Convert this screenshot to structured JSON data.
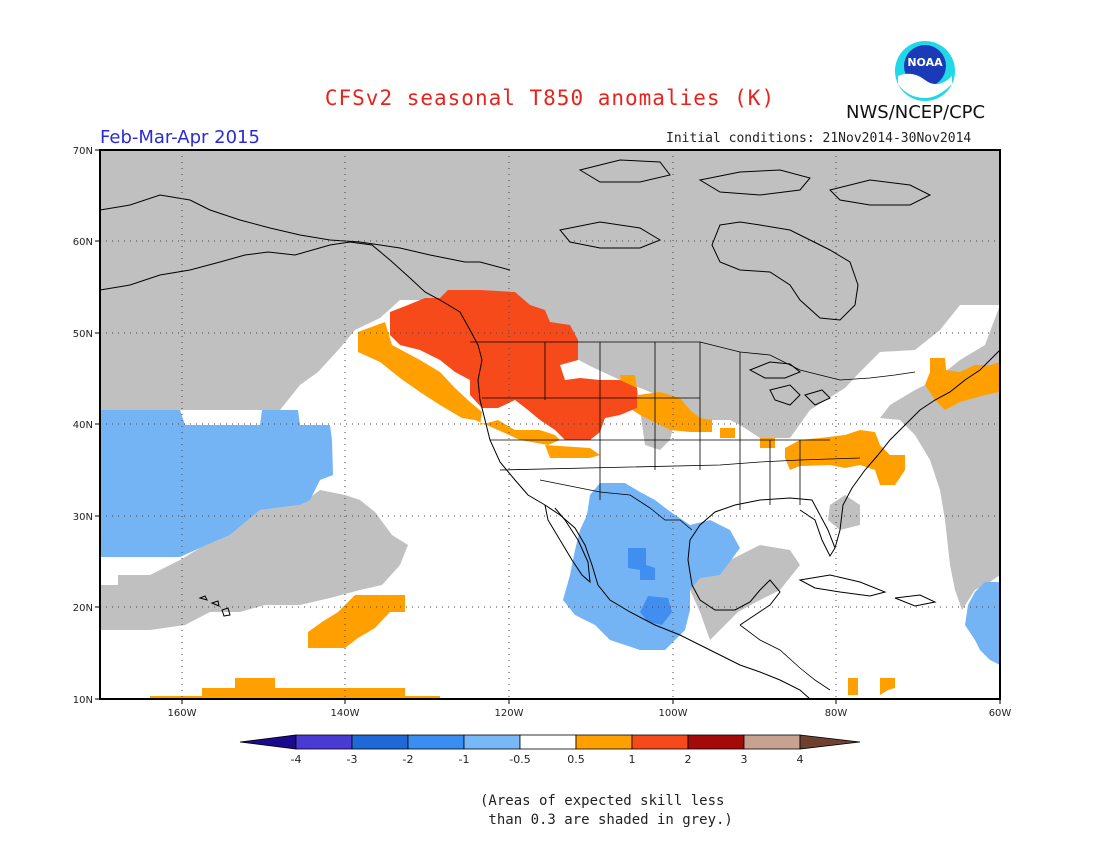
{
  "header": {
    "title": "CFSv2 seasonal T850 anomalies (K)",
    "agency": "NWS/NCEP/CPC",
    "logo_text": "NOAA",
    "period": "Feb-Mar-Apr 2015",
    "initial_conditions": "Initial conditions: 21Nov2014-30Nov2014"
  },
  "map": {
    "lat_labels": [
      "70N",
      "60N",
      "50N",
      "40N",
      "30N",
      "20N",
      "10N"
    ],
    "lon_labels": [
      "160W",
      "140W",
      "120W",
      "100W",
      "80W",
      "60W"
    ],
    "lat_range": [
      10,
      70
    ],
    "lon_range": [
      -170,
      -60
    ],
    "colors": {
      "grey": "#c0c0c0",
      "light_blue": "#74b4f4",
      "blue": "#3f8ef0",
      "orange": "#ffa000",
      "red_orange": "#f64a1a"
    }
  },
  "colorbar": {
    "tick_labels": [
      "-4",
      "-3",
      "-2",
      "-1",
      "-0.5",
      "0.5",
      "1",
      "2",
      "3",
      "4"
    ],
    "colors": [
      "#1c0a8c",
      "#4a3ad4",
      "#1e68d8",
      "#3a8ef2",
      "#78b8f6",
      "#ffffff",
      "#ffa000",
      "#f64a1a",
      "#a50a0a",
      "#c8a290",
      "#6e4030"
    ]
  },
  "note": "(Areas of expected skill less\n than 0.3 are shaded in grey.)"
}
